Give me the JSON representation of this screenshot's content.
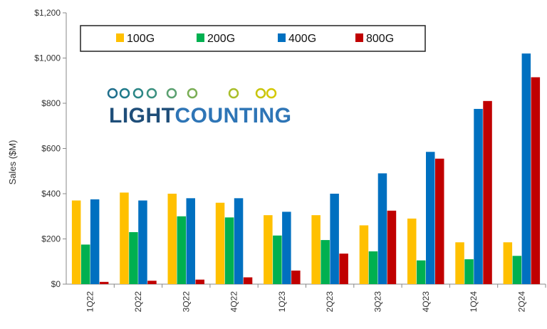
{
  "chart_data": {
    "type": "bar",
    "title": "",
    "xlabel": "",
    "ylabel": "Sales ($M)",
    "ylim": [
      0,
      1200
    ],
    "yticks": [
      0,
      200,
      400,
      600,
      800,
      1000,
      1200
    ],
    "ytick_labels": [
      "$0",
      "$200",
      "$400",
      "$600",
      "$800",
      "$1,000",
      "$1,200"
    ],
    "categories": [
      "1Q22",
      "2Q22",
      "3Q22",
      "4Q22",
      "1Q23",
      "2Q23",
      "3Q23",
      "4Q23",
      "1Q24",
      "2Q24"
    ],
    "series": [
      {
        "name": "100G",
        "color": "#FFC000",
        "values": [
          370,
          405,
          400,
          360,
          305,
          305,
          260,
          290,
          185,
          185
        ]
      },
      {
        "name": "200G",
        "color": "#00B050",
        "values": [
          175,
          230,
          300,
          295,
          215,
          195,
          145,
          105,
          110,
          125
        ]
      },
      {
        "name": "400G",
        "color": "#0070C0",
        "values": [
          375,
          370,
          380,
          380,
          320,
          400,
          490,
          585,
          775,
          1020
        ]
      },
      {
        "name": "800G",
        "color": "#C00000",
        "values": [
          10,
          15,
          20,
          30,
          60,
          135,
          325,
          555,
          810,
          915
        ]
      }
    ],
    "legend_position": "top",
    "grid": false
  },
  "logo": {
    "text_dark": "LIGHT",
    "text_light": "COUNTING",
    "dark_color": "#1F4E79",
    "light_color": "#2E75B6",
    "chain_color_start": "#1F6E8C",
    "chain_color_end": "#C9C400"
  }
}
